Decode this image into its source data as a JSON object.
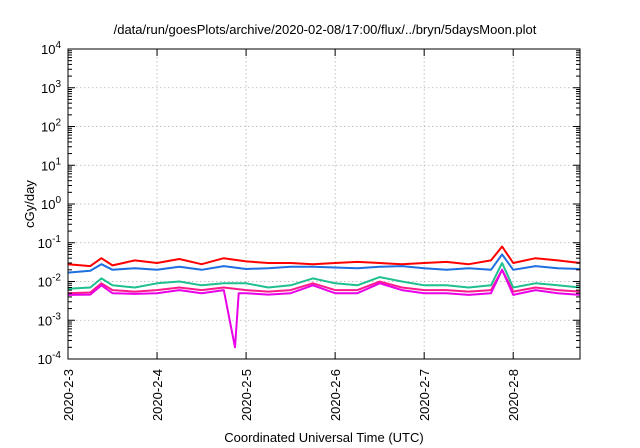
{
  "chart_data": {
    "type": "line",
    "title": "/data/run/goesPlots/archive/2020-02-08/17:00/flux/../bryn/5daysMoon.plot",
    "xlabel": "Coordinated Universal Time (UTC)",
    "ylabel": "cGy/day",
    "x_scale": "time",
    "x_range": [
      "2020-02-03T00:00",
      "2020-02-08T18:00"
    ],
    "x_ticks": [
      "2020-2-3",
      "2020-2-4",
      "2020-2-5",
      "2020-2-6",
      "2020-2-7",
      "2020-2-8"
    ],
    "y_scale": "log",
    "y_range": [
      0.0001,
      10000
    ],
    "y_ticks": [
      {
        "base": "10",
        "exp": "-4"
      },
      {
        "base": "10",
        "exp": "-3"
      },
      {
        "base": "10",
        "exp": "-2"
      },
      {
        "base": "10",
        "exp": "-1"
      },
      {
        "base": "10",
        "exp": "0"
      },
      {
        "base": "10",
        "exp": "1"
      },
      {
        "base": "10",
        "exp": "2"
      },
      {
        "base": "10",
        "exp": "3"
      },
      {
        "base": "10",
        "exp": "4"
      }
    ],
    "grid": true,
    "legend": "none",
    "series": [
      {
        "color": "#ff0000",
        "x": [
          "2020-02-03T00:00",
          "2020-02-03T06:00",
          "2020-02-03T09:00",
          "2020-02-03T12:00",
          "2020-02-03T18:00",
          "2020-02-04T00:00",
          "2020-02-04T06:00",
          "2020-02-04T12:00",
          "2020-02-04T18:00",
          "2020-02-05T00:00",
          "2020-02-05T06:00",
          "2020-02-05T12:00",
          "2020-02-05T18:00",
          "2020-02-06T00:00",
          "2020-02-06T06:00",
          "2020-02-06T12:00",
          "2020-02-06T18:00",
          "2020-02-07T00:00",
          "2020-02-07T06:00",
          "2020-02-07T12:00",
          "2020-02-07T18:00",
          "2020-02-07T21:00",
          "2020-02-08T00:00",
          "2020-02-08T06:00",
          "2020-02-08T12:00",
          "2020-02-08T18:00"
        ],
        "y": [
          0.028,
          0.025,
          0.04,
          0.026,
          0.035,
          0.03,
          0.038,
          0.028,
          0.04,
          0.033,
          0.03,
          0.03,
          0.028,
          0.03,
          0.032,
          0.03,
          0.028,
          0.03,
          0.032,
          0.028,
          0.035,
          0.08,
          0.03,
          0.04,
          0.035,
          0.03
        ]
      },
      {
        "color": "#1e6fe0",
        "x": [
          "2020-02-03T00:00",
          "2020-02-03T06:00",
          "2020-02-03T09:00",
          "2020-02-03T12:00",
          "2020-02-03T18:00",
          "2020-02-04T00:00",
          "2020-02-04T06:00",
          "2020-02-04T12:00",
          "2020-02-04T18:00",
          "2020-02-05T00:00",
          "2020-02-05T06:00",
          "2020-02-05T12:00",
          "2020-02-05T18:00",
          "2020-02-06T00:00",
          "2020-02-06T06:00",
          "2020-02-06T12:00",
          "2020-02-06T18:00",
          "2020-02-07T00:00",
          "2020-02-07T06:00",
          "2020-02-07T12:00",
          "2020-02-07T18:00",
          "2020-02-07T21:00",
          "2020-02-08T00:00",
          "2020-02-08T06:00",
          "2020-02-08T12:00",
          "2020-02-08T18:00"
        ],
        "y": [
          0.017,
          0.019,
          0.028,
          0.02,
          0.022,
          0.02,
          0.024,
          0.02,
          0.025,
          0.021,
          0.022,
          0.024,
          0.024,
          0.023,
          0.022,
          0.024,
          0.025,
          0.022,
          0.02,
          0.022,
          0.02,
          0.05,
          0.02,
          0.025,
          0.022,
          0.021
        ]
      },
      {
        "color": "#1fbf8f",
        "x": [
          "2020-02-03T00:00",
          "2020-02-03T06:00",
          "2020-02-03T09:00",
          "2020-02-03T12:00",
          "2020-02-03T18:00",
          "2020-02-04T00:00",
          "2020-02-04T06:00",
          "2020-02-04T12:00",
          "2020-02-04T18:00",
          "2020-02-05T00:00",
          "2020-02-05T06:00",
          "2020-02-05T12:00",
          "2020-02-05T18:00",
          "2020-02-06T00:00",
          "2020-02-06T06:00",
          "2020-02-06T12:00",
          "2020-02-06T18:00",
          "2020-02-07T00:00",
          "2020-02-07T06:00",
          "2020-02-07T12:00",
          "2020-02-07T18:00",
          "2020-02-07T21:00",
          "2020-02-08T00:00",
          "2020-02-08T06:00",
          "2020-02-08T12:00",
          "2020-02-08T18:00"
        ],
        "y": [
          0.0065,
          0.007,
          0.012,
          0.008,
          0.007,
          0.009,
          0.01,
          0.008,
          0.009,
          0.009,
          0.007,
          0.008,
          0.012,
          0.009,
          0.008,
          0.013,
          0.01,
          0.008,
          0.008,
          0.007,
          0.008,
          0.03,
          0.007,
          0.009,
          0.008,
          0.007
        ]
      },
      {
        "color": "#ff1a8c",
        "x": [
          "2020-02-03T00:00",
          "2020-02-03T06:00",
          "2020-02-03T09:00",
          "2020-02-03T12:00",
          "2020-02-03T18:00",
          "2020-02-04T00:00",
          "2020-02-04T06:00",
          "2020-02-04T12:00",
          "2020-02-04T18:00",
          "2020-02-05T00:00",
          "2020-02-05T06:00",
          "2020-02-05T12:00",
          "2020-02-05T18:00",
          "2020-02-06T00:00",
          "2020-02-06T06:00",
          "2020-02-06T12:00",
          "2020-02-06T18:00",
          "2020-02-07T00:00",
          "2020-02-07T06:00",
          "2020-02-07T12:00",
          "2020-02-07T18:00",
          "2020-02-07T21:00",
          "2020-02-08T00:00",
          "2020-02-08T06:00",
          "2020-02-08T12:00",
          "2020-02-08T18:00"
        ],
        "y": [
          0.005,
          0.0052,
          0.009,
          0.006,
          0.0055,
          0.006,
          0.007,
          0.006,
          0.007,
          0.006,
          0.0055,
          0.006,
          0.009,
          0.006,
          0.006,
          0.01,
          0.007,
          0.006,
          0.006,
          0.0055,
          0.006,
          0.02,
          0.0055,
          0.007,
          0.006,
          0.0055
        ]
      },
      {
        "color": "#e800e8",
        "x": [
          "2020-02-03T00:00",
          "2020-02-03T06:00",
          "2020-02-03T09:00",
          "2020-02-03T12:00",
          "2020-02-03T18:00",
          "2020-02-04T00:00",
          "2020-02-04T06:00",
          "2020-02-04T12:00",
          "2020-02-04T18:00",
          "2020-02-04T21:00",
          "2020-02-04T22:00",
          "2020-02-05T00:00",
          "2020-02-05T06:00",
          "2020-02-05T12:00",
          "2020-02-05T18:00",
          "2020-02-06T00:00",
          "2020-02-06T06:00",
          "2020-02-06T12:00",
          "2020-02-06T18:00",
          "2020-02-07T00:00",
          "2020-02-07T06:00",
          "2020-02-07T12:00",
          "2020-02-07T18:00",
          "2020-02-07T21:00",
          "2020-02-08T00:00",
          "2020-02-08T06:00",
          "2020-02-08T12:00",
          "2020-02-08T18:00"
        ],
        "y": [
          0.0045,
          0.0046,
          0.008,
          0.005,
          0.0048,
          0.005,
          0.006,
          0.005,
          0.006,
          0.0002,
          0.005,
          0.005,
          0.0046,
          0.005,
          0.008,
          0.005,
          0.005,
          0.009,
          0.006,
          0.005,
          0.005,
          0.0045,
          0.005,
          0.02,
          0.0045,
          0.006,
          0.005,
          0.0045
        ]
      }
    ]
  }
}
